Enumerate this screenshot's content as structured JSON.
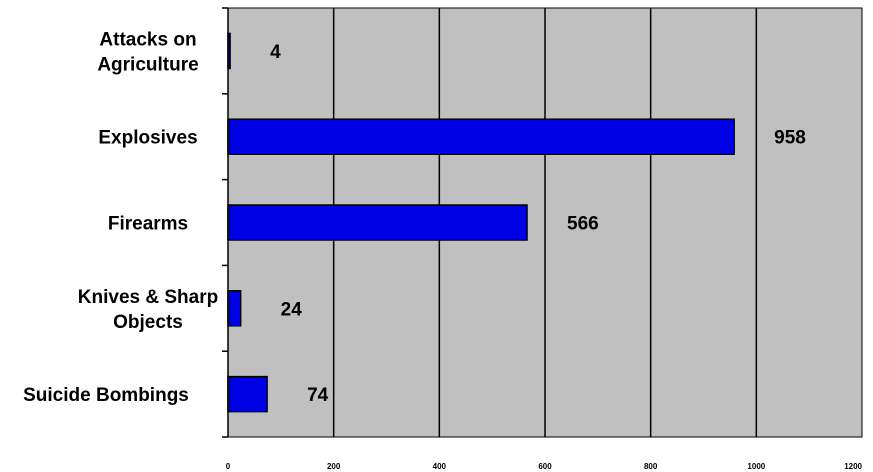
{
  "chart_data": {
    "type": "bar",
    "orientation": "horizontal",
    "categories": [
      "Attacks on Agriculture",
      "Explosives",
      "Firearms",
      "Knives & Sharp Objects",
      "Suicide Bombings"
    ],
    "category_lines": [
      [
        "Attacks on",
        "Agriculture"
      ],
      [
        "Explosives"
      ],
      [
        "Firearms"
      ],
      [
        "Knives & Sharp",
        "Objects"
      ],
      [
        "Suicide Bombings"
      ]
    ],
    "values": [
      4,
      958,
      566,
      24,
      74
    ],
    "data_labels": [
      "4",
      "958",
      "566",
      "24",
      "74"
    ],
    "xlim": [
      0,
      1200
    ],
    "x_ticks": [
      "0",
      "200",
      "400",
      "600",
      "800",
      "1000",
      "1200"
    ],
    "title": "",
    "xlabel": "",
    "ylabel": "",
    "grid": "vertical",
    "legend": "none",
    "colors": {
      "bar_fill": "#0000e6",
      "bar_stroke": "#000000",
      "plot_background": "#c0c0c0",
      "grid": "#000000"
    }
  }
}
